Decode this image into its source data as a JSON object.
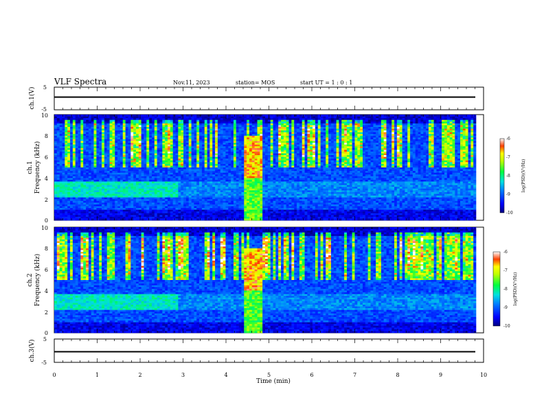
{
  "header": {
    "title": "VLF Spectra",
    "date": "Nov.11, 2023",
    "station": "station= MOS",
    "start": "start  UT =   1 : 0  : 1"
  },
  "chart_data": [
    {
      "id": "ch1-waveform",
      "type": "line",
      "ylabel": "ch.1(V)",
      "ylim": [
        -5,
        5
      ],
      "yticks": [
        "5",
        "-5"
      ],
      "xlim": [
        0,
        10
      ],
      "level": 0
    },
    {
      "id": "ch1-spectrogram",
      "type": "heatmap",
      "ylabel": [
        "ch.1",
        "Frequency (kHz)"
      ],
      "ylim": [
        0,
        10
      ],
      "yticks": [
        "0",
        "2",
        "4",
        "6",
        "8",
        "10"
      ],
      "xlim": [
        0,
        10
      ],
      "data_end_min": 9.8,
      "colorbar": {
        "label": "log(PSD)(V²/Hz)",
        "range": [
          -10,
          -6
        ],
        "ticks": [
          "-6",
          "-7",
          "-8",
          "-9",
          "-10"
        ]
      },
      "features": {
        "interference_band_min": [
          4.4,
          4.85
        ],
        "level_change_min": 2.9
      }
    },
    {
      "id": "ch2-spectrogram",
      "type": "heatmap",
      "ylabel": [
        "ch.2",
        "Frequency (kHz)"
      ],
      "ylim": [
        0,
        10
      ],
      "yticks": [
        "0",
        "2",
        "4",
        "6",
        "8",
        "10"
      ],
      "xlim": [
        0,
        10
      ],
      "data_end_min": 9.8,
      "colorbar": {
        "label": "log(PSD)(V²/Hz)",
        "range": [
          -10,
          -6
        ],
        "ticks": [
          "-6",
          "-7",
          "-8",
          "-9",
          "-10"
        ]
      },
      "features": {
        "interference_band_min": [
          4.4,
          4.85
        ],
        "level_change_min": 2.9
      }
    },
    {
      "id": "ch3-waveform",
      "type": "line",
      "ylabel": "ch.3(V)",
      "ylim": [
        -5,
        5
      ],
      "yticks": [
        "5",
        "-5"
      ],
      "xlim": [
        0,
        10
      ],
      "level": 0
    }
  ],
  "xaxis": {
    "label": "Time (min)",
    "ticks": [
      "0",
      "1",
      "2",
      "3",
      "4",
      "5",
      "6",
      "7",
      "8",
      "9",
      "10"
    ]
  }
}
